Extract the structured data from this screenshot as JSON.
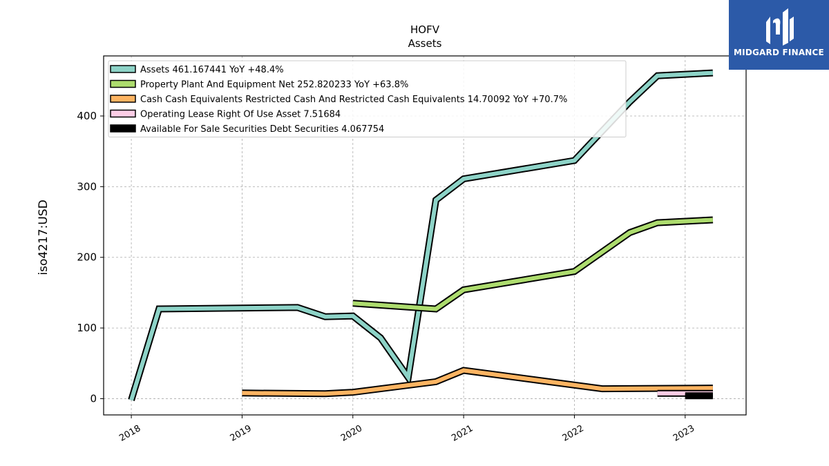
{
  "chart_data": {
    "type": "line",
    "title": "HOFV",
    "subtitle": "Assets",
    "ylabel": "iso4217:USD",
    "xlabel": "",
    "xlim": [
      2017.75,
      2023.55
    ],
    "ylim": [
      -23,
      485
    ],
    "x_ticks": [
      {
        "value": 2018,
        "label": "2018"
      },
      {
        "value": 2019,
        "label": "2019"
      },
      {
        "value": 2020,
        "label": "2020"
      },
      {
        "value": 2021,
        "label": "2021"
      },
      {
        "value": 2022,
        "label": "2022"
      },
      {
        "value": 2023,
        "label": "2023"
      }
    ],
    "y_ticks": [
      {
        "value": 0,
        "label": "0"
      },
      {
        "value": 100,
        "label": "100"
      },
      {
        "value": 200,
        "label": "200"
      },
      {
        "value": 300,
        "label": "300"
      },
      {
        "value": 400,
        "label": "400"
      }
    ],
    "grid": true,
    "legend_position": "top-left",
    "series": [
      {
        "name": "Assets",
        "legend": "Assets  461.167441 YoY +48.4%",
        "color": "#8dd3c7",
        "style": "line",
        "points": [
          [
            2018.0,
            -2
          ],
          [
            2018.25,
            127
          ],
          [
            2019.5,
            129
          ],
          [
            2019.75,
            116
          ],
          [
            2020.0,
            117
          ],
          [
            2020.25,
            86
          ],
          [
            2020.5,
            30
          ],
          [
            2020.75,
            281
          ],
          [
            2021.0,
            311
          ],
          [
            2022.0,
            337
          ],
          [
            2022.5,
            420
          ],
          [
            2022.75,
            457
          ],
          [
            2023.25,
            461
          ]
        ]
      },
      {
        "name": "Property Plant And Equipment Net",
        "legend": "Property Plant And Equipment Net  252.820233 YoY +63.8%",
        "color": "#addc6e",
        "style": "line",
        "points": [
          [
            2020.0,
            135
          ],
          [
            2020.75,
            127
          ],
          [
            2021.0,
            154
          ],
          [
            2022.0,
            180
          ],
          [
            2022.5,
            235
          ],
          [
            2022.75,
            249
          ],
          [
            2023.25,
            253
          ]
        ]
      },
      {
        "name": "Cash Cash Equivalents Restricted Cash And Restricted Cash Equivalents",
        "legend": "Cash Cash Equivalents Restricted Cash And Restricted Cash Equivalents  14.70092 YoY +70.7%",
        "color": "#fdb462",
        "style": "line",
        "points": [
          [
            2019.0,
            8
          ],
          [
            2019.75,
            7
          ],
          [
            2020.0,
            9
          ],
          [
            2020.75,
            24
          ],
          [
            2021.0,
            40
          ],
          [
            2022.25,
            14
          ],
          [
            2023.25,
            15
          ]
        ]
      },
      {
        "name": "Operating Lease Right Of Use Asset",
        "legend": "Operating Lease Right Of Use Asset  7.51684",
        "color": "#fccde5",
        "style": "line",
        "points": [
          [
            2022.75,
            7.5
          ],
          [
            2023.25,
            7.5
          ]
        ]
      },
      {
        "name": "Available For Sale Securities Debt Securities",
        "legend": "Available For Sale Securities Debt Securities  4.067754",
        "color": "#000000",
        "style": "line",
        "points": [
          [
            2023.0,
            4.1
          ],
          [
            2023.25,
            4.1
          ]
        ]
      }
    ]
  },
  "logo": {
    "text": "MIDGARD FINANCE",
    "color": "#2c5aa8"
  }
}
